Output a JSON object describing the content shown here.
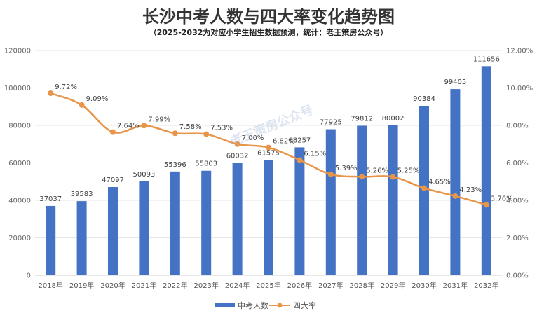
{
  "title": "长沙中考人数与四大率变化趋势图",
  "subtitle": "（2025-2032为对应小学生招生数据预测，统计：老王策房公众号）",
  "watermark": "老王策房公众号",
  "chart_data": {
    "type": "bar",
    "categories": [
      "2018年",
      "2019年",
      "2020年",
      "2021年",
      "2022年",
      "2023年",
      "2024年",
      "2025年",
      "2026年",
      "2027年",
      "2028年",
      "2029年",
      "2030年",
      "2031年",
      "2032年"
    ],
    "series": [
      {
        "name": "中考人数",
        "type": "bar",
        "axis": "left",
        "color": "#4472c4",
        "values": [
          37037,
          39583,
          47097,
          50093,
          55396,
          55803,
          60032,
          61575,
          68257,
          77925,
          79812,
          80002,
          90384,
          99405,
          111656
        ],
        "labels": [
          "37037",
          "39583",
          "47097",
          "50093",
          "55396",
          "55803",
          "60032",
          "61575",
          "68257",
          "77925",
          "79812",
          "80002",
          "90384",
          "99405",
          "111656"
        ]
      },
      {
        "name": "四大率",
        "type": "line",
        "axis": "right",
        "color": "#e8954a",
        "values": [
          9.72,
          9.09,
          7.64,
          7.99,
          7.58,
          7.53,
          7.0,
          6.82,
          6.15,
          5.39,
          5.26,
          5.25,
          4.65,
          4.23,
          3.76
        ],
        "labels": [
          "9.72%",
          "9.09%",
          "7.64%",
          "7.99%",
          "7.58%",
          "7.53%",
          "7.00%",
          "6.82%",
          "6.15%",
          "5.39%",
          "5.26%",
          "5.25%",
          "4.65%",
          "4.23%",
          "3.76%"
        ]
      }
    ],
    "y_left": {
      "range": [
        0,
        120000
      ],
      "ticks": [
        0,
        20000,
        40000,
        60000,
        80000,
        100000,
        120000
      ],
      "tick_labels": [
        "0",
        "20000",
        "40000",
        "60000",
        "80000",
        "100000",
        "120000"
      ]
    },
    "y_right": {
      "range": [
        0,
        12
      ],
      "ticks": [
        0,
        2,
        4,
        6,
        8,
        10,
        12
      ],
      "tick_labels": [
        "0.00%",
        "2.00%",
        "4.00%",
        "6.00%",
        "8.00%",
        "10.00%",
        "12.00%"
      ]
    },
    "grid": true,
    "legend_position": "bottom"
  }
}
